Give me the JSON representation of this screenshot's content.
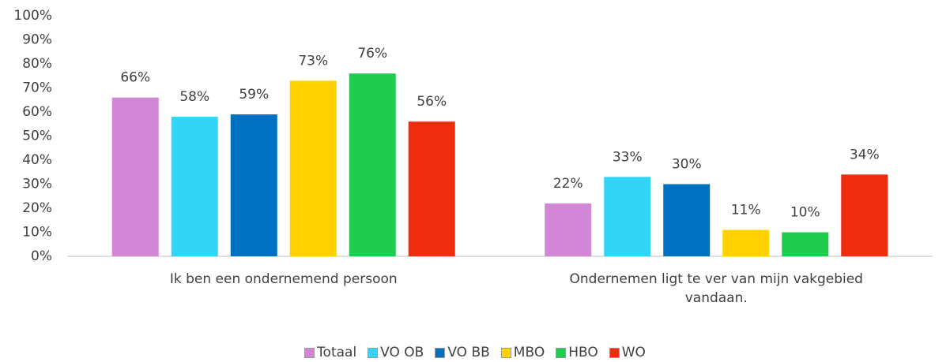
{
  "chart_data": {
    "type": "bar",
    "categories": [
      "Ik ben een ondernemend persoon",
      "Ondernemen ligt te ver van mijn vakgebied vandaan."
    ],
    "series": [
      {
        "name": "Totaal",
        "color": "#d287d6",
        "values": [
          66,
          22
        ],
        "value_labels": [
          "66%",
          "22%"
        ]
      },
      {
        "name": "VO OB",
        "color": "#33d4f5",
        "values": [
          58,
          33
        ],
        "value_labels": [
          "58%",
          "33%"
        ]
      },
      {
        "name": "VO BB",
        "color": "#0070c0",
        "values": [
          59,
          30
        ],
        "value_labels": [
          "59%",
          "30%"
        ]
      },
      {
        "name": "MBO",
        "color": "#ffd200",
        "values": [
          73,
          11
        ],
        "value_labels": [
          "73%",
          "11%"
        ]
      },
      {
        "name": "HBO",
        "color": "#1fcc4f",
        "values": [
          76,
          10
        ],
        "value_labels": [
          "76%",
          "10%"
        ]
      },
      {
        "name": "WO",
        "color": "#ee2d0e",
        "values": [
          56,
          34
        ],
        "value_labels": [
          "56%",
          "34%"
        ]
      }
    ],
    "ylim": [
      0,
      100
    ],
    "yticks": [
      {
        "value": 0,
        "label": "0%"
      },
      {
        "value": 10,
        "label": "10%"
      },
      {
        "value": 20,
        "label": "20%"
      },
      {
        "value": 30,
        "label": "30%"
      },
      {
        "value": 40,
        "label": "40%"
      },
      {
        "value": 50,
        "label": "50%"
      },
      {
        "value": 60,
        "label": "60%"
      },
      {
        "value": 70,
        "label": "70%"
      },
      {
        "value": 80,
        "label": "80%"
      },
      {
        "value": 90,
        "label": "90%"
      },
      {
        "value": 100,
        "label": "100%"
      }
    ],
    "legend": "bottom"
  }
}
